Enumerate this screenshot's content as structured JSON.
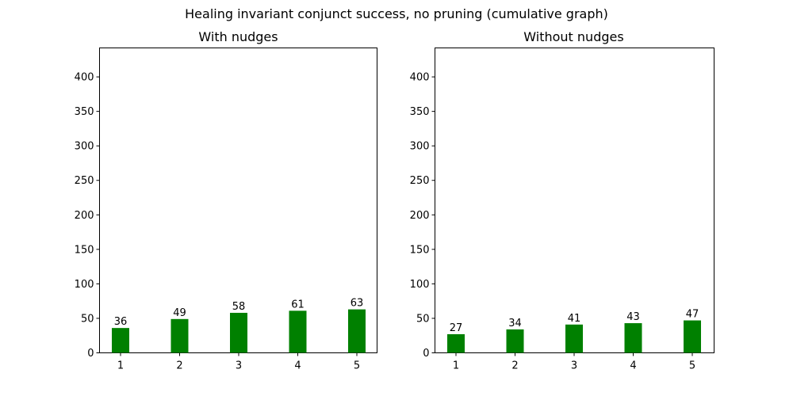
{
  "figure": {
    "title": "Healing invariant conjunct success, no pruning (cumulative graph)"
  },
  "colors": {
    "bar": "#008000",
    "axes": "#000000",
    "background": "#ffffff"
  },
  "chart_data": [
    {
      "type": "bar",
      "title": "With nudges",
      "xlabel": "",
      "ylabel": "",
      "categories": [
        "1",
        "2",
        "3",
        "4",
        "5"
      ],
      "values": [
        36,
        49,
        58,
        61,
        63
      ],
      "ylim": [
        0,
        442
      ],
      "yticks": [
        0,
        50,
        100,
        150,
        200,
        250,
        300,
        350,
        400
      ],
      "grid": false,
      "legend": null
    },
    {
      "type": "bar",
      "title": "Without nudges",
      "xlabel": "",
      "ylabel": "",
      "categories": [
        "1",
        "2",
        "3",
        "4",
        "5"
      ],
      "values": [
        27,
        34,
        41,
        43,
        47
      ],
      "ylim": [
        0,
        442
      ],
      "yticks": [
        0,
        50,
        100,
        150,
        200,
        250,
        300,
        350,
        400
      ],
      "grid": false,
      "legend": null
    }
  ]
}
